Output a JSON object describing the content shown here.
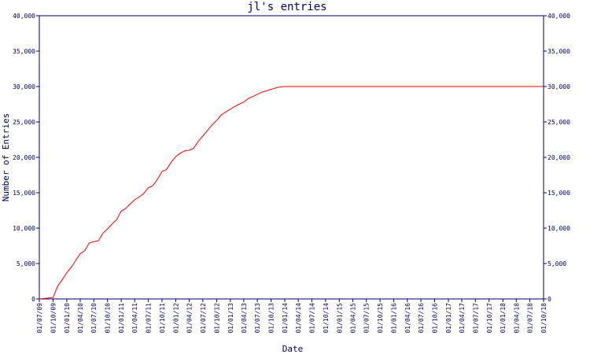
{
  "chart_data": {
    "type": "line",
    "title": "jl's entries",
    "xlabel": "Date",
    "ylabel": "Number of Entries",
    "ylim": [
      0,
      40000
    ],
    "y_ticks": [
      "0",
      "5,000",
      "10,000",
      "15,000",
      "20,000",
      "25,000",
      "30,000",
      "35,000",
      "40,000"
    ],
    "x_ticks": [
      "01/07/09",
      "01/10/09",
      "01/01/10",
      "01/04/10",
      "01/07/10",
      "01/10/10",
      "01/01/11",
      "01/04/11",
      "01/07/11",
      "01/10/11",
      "01/01/12",
      "01/04/12",
      "01/07/12",
      "01/10/12",
      "01/01/13",
      "01/04/13",
      "01/07/13",
      "01/10/13",
      "01/01/14",
      "01/04/14",
      "01/07/14",
      "01/10/14",
      "01/01/15",
      "01/04/15",
      "01/07/15",
      "01/10/15",
      "01/01/16",
      "01/04/16",
      "01/07/16",
      "01/10/16",
      "01/01/17",
      "01/04/17",
      "01/07/17",
      "01/10/17",
      "01/01/18",
      "01/04/18",
      "01/07/18",
      "01/10/18"
    ],
    "grid": false,
    "colors": {
      "line": "#ff0000",
      "axis": "#000066",
      "background": "#ffffff"
    },
    "series": [
      {
        "x": [
          "01/07/09",
          "01/10/09",
          "01/11/09",
          "01/12/09",
          "01/01/10",
          "01/02/10",
          "01/03/10",
          "01/04/10",
          "01/05/10",
          "01/06/10",
          "01/07/10",
          "01/08/10",
          "01/09/10",
          "01/10/10",
          "01/11/10",
          "01/12/10",
          "01/01/11",
          "01/02/11",
          "01/03/11",
          "01/04/11",
          "01/05/11",
          "01/06/11",
          "01/07/11",
          "01/08/11",
          "01/09/11",
          "01/10/11",
          "01/11/11",
          "01/12/11",
          "01/01/12",
          "01/02/12",
          "01/03/12",
          "01/04/12",
          "01/05/12",
          "01/06/12",
          "01/07/12",
          "01/08/12",
          "01/09/12",
          "01/10/12",
          "01/11/12",
          "01/12/12",
          "01/01/13",
          "01/02/13",
          "01/03/13",
          "01/04/13",
          "01/05/13",
          "01/06/13",
          "01/07/13",
          "01/08/13",
          "01/09/13",
          "01/10/13",
          "01/11/13",
          "01/12/13",
          "01/01/14",
          "01/02/14",
          "01/03/14",
          "01/04/14",
          "01/05/14",
          "01/06/14",
          "01/07/14",
          "01/08/14",
          "01/09/14",
          "01/10/14",
          "01/11/14",
          "01/12/14",
          "01/01/15",
          "01/10/18"
        ],
        "values": [
          0,
          200,
          1800,
          2700,
          3700,
          4500,
          5400,
          6400,
          6800,
          7900,
          8100,
          8200,
          9300,
          9900,
          10600,
          11200,
          12400,
          12800,
          13400,
          14000,
          14400,
          14900,
          15700,
          16000,
          16900,
          18000,
          18300,
          19300,
          20100,
          20600,
          20900,
          21000,
          21300,
          22300,
          23000,
          23800,
          24600,
          25200,
          26000,
          26400,
          26800,
          27200,
          27500,
          27800,
          28300,
          28600,
          28900,
          29200,
          29400,
          29600,
          29800,
          29950,
          30000,
          30000,
          30000,
          30000,
          30000,
          30000,
          30000,
          30000,
          30000,
          30000,
          30000,
          30000,
          30000,
          30000
        ]
      }
    ]
  }
}
